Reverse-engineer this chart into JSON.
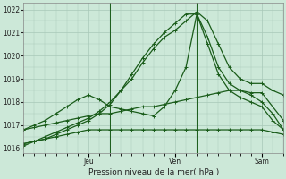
{
  "title": "",
  "xlabel": "Pression niveau de la mer( hPa )",
  "ylabel": "",
  "bg_color": "#cce8d8",
  "plot_bg_color": "#cce8d8",
  "grid_color": "#a8c8b8",
  "line_color": "#1a5c1a",
  "marker_color": "#1a5c1a",
  "ylim": [
    1015.8,
    1022.3
  ],
  "xlim": [
    0,
    72
  ],
  "yticks": [
    1016,
    1017,
    1018,
    1019,
    1020,
    1021,
    1022
  ],
  "xtick_positions": [
    18,
    42,
    66
  ],
  "xtick_labels": [
    "Jeu",
    "Ven",
    "Sam"
  ],
  "vlines": [
    24,
    48
  ],
  "series": [
    {
      "x": [
        0,
        3,
        6,
        9,
        12,
        15,
        18,
        21,
        24,
        27,
        30,
        33,
        36,
        39,
        42,
        45,
        48,
        51,
        54,
        57,
        60,
        63,
        66,
        69,
        72
      ],
      "y": [
        1016.2,
        1016.3,
        1016.5,
        1016.7,
        1016.9,
        1017.1,
        1017.3,
        1017.6,
        1018.0,
        1018.5,
        1019.0,
        1019.7,
        1020.3,
        1020.8,
        1021.1,
        1021.5,
        1021.9,
        1021.5,
        1020.5,
        1019.5,
        1019.0,
        1018.8,
        1018.8,
        1018.5,
        1018.3
      ]
    },
    {
      "x": [
        0,
        3,
        6,
        9,
        12,
        15,
        18,
        21,
        24,
        27,
        30,
        33,
        36,
        39,
        42,
        45,
        48,
        51,
        54,
        57,
        60,
        63,
        66,
        69,
        72
      ],
      "y": [
        1016.1,
        1016.3,
        1016.4,
        1016.6,
        1016.8,
        1017.0,
        1017.2,
        1017.5,
        1017.9,
        1018.5,
        1019.2,
        1019.9,
        1020.5,
        1021.0,
        1021.4,
        1021.8,
        1021.8,
        1020.8,
        1019.5,
        1018.8,
        1018.5,
        1018.3,
        1018.0,
        1017.5,
        1016.8
      ]
    },
    {
      "x": [
        0,
        3,
        6,
        9,
        12,
        15,
        18,
        21,
        24,
        27,
        30,
        33,
        36,
        39,
        42,
        45,
        48,
        51,
        54,
        57,
        60,
        63,
        66,
        69,
        72
      ],
      "y": [
        1016.8,
        1017.0,
        1017.2,
        1017.5,
        1017.8,
        1018.1,
        1018.3,
        1018.1,
        1017.8,
        1017.7,
        1017.6,
        1017.5,
        1017.4,
        1017.8,
        1018.5,
        1019.5,
        1021.8,
        1020.5,
        1019.2,
        1018.5,
        1018.2,
        1018.0,
        1017.8,
        1017.2,
        1016.8
      ]
    },
    {
      "x": [
        0,
        3,
        6,
        9,
        12,
        15,
        18,
        21,
        24,
        27,
        30,
        33,
        36,
        39,
        42,
        45,
        48,
        51,
        54,
        57,
        60,
        63,
        66,
        69,
        72
      ],
      "y": [
        1016.8,
        1016.9,
        1017.0,
        1017.1,
        1017.2,
        1017.3,
        1017.4,
        1017.5,
        1017.5,
        1017.6,
        1017.7,
        1017.8,
        1017.8,
        1017.9,
        1018.0,
        1018.1,
        1018.2,
        1018.3,
        1018.4,
        1018.5,
        1018.5,
        1018.4,
        1018.4,
        1017.8,
        1017.2
      ]
    },
    {
      "x": [
        0,
        3,
        6,
        9,
        12,
        15,
        18,
        21,
        24,
        27,
        30,
        33,
        36,
        39,
        42,
        45,
        48,
        51,
        54,
        57,
        60,
        63,
        66,
        69,
        72
      ],
      "y": [
        1016.2,
        1016.3,
        1016.4,
        1016.5,
        1016.6,
        1016.7,
        1016.8,
        1016.8,
        1016.8,
        1016.8,
        1016.8,
        1016.8,
        1016.8,
        1016.8,
        1016.8,
        1016.8,
        1016.8,
        1016.8,
        1016.8,
        1016.8,
        1016.8,
        1016.8,
        1016.8,
        1016.7,
        1016.6
      ]
    }
  ]
}
